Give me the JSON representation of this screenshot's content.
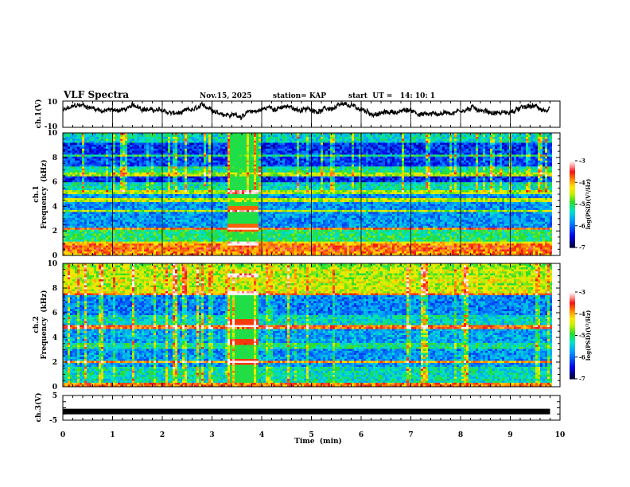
{
  "header": {
    "title": "VLF Spectra",
    "date": "Nov.15, 2025",
    "station": "station= KAP",
    "start": "start  UT =   14: 10: 1"
  },
  "colors": {
    "axis": "#000000",
    "trace": "#000000"
  },
  "chart_data": [
    {
      "type": "line",
      "name": "ch1-waveform",
      "ylabel": "ch.1(V)",
      "ylim": [
        -10,
        10
      ],
      "yticks": [
        "10",
        "-10"
      ],
      "xlim": [
        0,
        10
      ],
      "data_end_min": 9.8,
      "description_values": "noisy waveform, roughly between -4 and 7 V"
    },
    {
      "type": "heatmap",
      "name": "ch1-spectrogram",
      "ylabel_top": "ch.1",
      "ylabel": "Frequency  (kHz)",
      "ylim": [
        0,
        10
      ],
      "yticks": [
        "0",
        "2",
        "4",
        "6",
        "8",
        "10"
      ],
      "xlim": [
        0,
        10
      ],
      "data_end_min": 9.8,
      "burst_interval_min": [
        3.3,
        3.9
      ],
      "colorbar": {
        "label": "log(PSD)(V²/Hz)",
        "range": [
          -7,
          -3
        ],
        "ticks": [
          "-3",
          "-4",
          "-5",
          "-6",
          "-7"
        ]
      }
    },
    {
      "type": "heatmap",
      "name": "ch2-spectrogram",
      "ylabel_top": "ch.2",
      "ylabel": "Frequency  (kHz)",
      "ylim": [
        0,
        10
      ],
      "yticks": [
        "0",
        "2",
        "4",
        "6",
        "8",
        "10"
      ],
      "xlim": [
        0,
        10
      ],
      "data_end_min": 9.8,
      "burst_interval_min": [
        3.3,
        3.9
      ],
      "colorbar": {
        "label": "log(PSD)(V²/Hz)",
        "range": [
          -7,
          -3
        ],
        "ticks": [
          "-3",
          "-4",
          "-5",
          "-6",
          "-7"
        ]
      }
    },
    {
      "type": "line",
      "name": "ch3-waveform",
      "ylabel": "ch.3(V)",
      "ylim": [
        -5,
        5
      ],
      "yticks": [
        "5",
        "-5"
      ],
      "level_v": -1.5,
      "xlim": [
        0,
        10
      ],
      "data_end_min": 9.8,
      "xticks": [
        "0",
        "1",
        "2",
        "3",
        "4",
        "5",
        "6",
        "7",
        "8",
        "9",
        "10"
      ],
      "xlabel": "Time  (min)"
    }
  ]
}
